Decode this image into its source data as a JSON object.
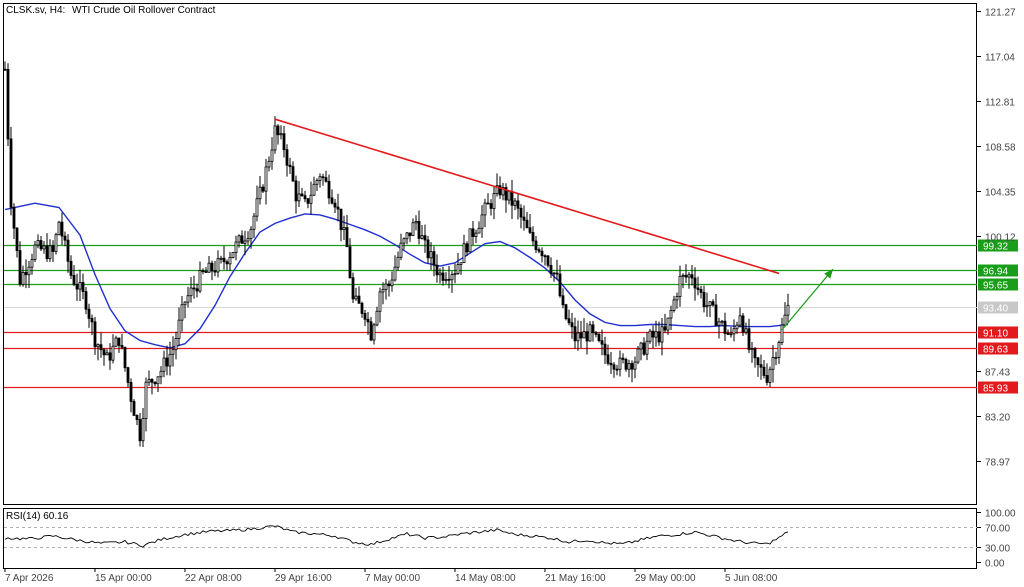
{
  "header": {
    "symbol_label": "CLSK.sv, H4:",
    "instrument_label": "WTI Crude Oil Rollover Contract"
  },
  "rsi_panel": {
    "label": "RSI(14) 60.16"
  },
  "colors": {
    "candle": "#000000",
    "moving_average": "#1f2fd0",
    "support_line": "#e31a1c",
    "resistance_line": "#1a9e1a",
    "trendline": "#e31a1c",
    "forecast_arrow": "#1a9e1a",
    "current_price_tag": "#c8c8c8",
    "rsi_line": "#000000"
  },
  "chart_data": [
    {
      "type": "candlestick",
      "ylim": [
        76.5,
        123
      ],
      "y_ticks": [
        "121.27",
        "117.04",
        "112.81",
        "108.58",
        "104.35",
        "100.12",
        "87.43",
        "83.20",
        "78.97"
      ],
      "x_ticks": [
        {
          "label": "7 Apr 2026",
          "bar": 0
        },
        {
          "label": "15 Apr 00:00",
          "bar": 30
        },
        {
          "label": "22 Apr 08:00",
          "bar": 60
        },
        {
          "label": "29 Apr 16:00",
          "bar": 90
        },
        {
          "label": "7 May 00:00",
          "bar": 120
        },
        {
          "label": "14 May 08:00",
          "bar": 150
        },
        {
          "label": "21 May 16:00",
          "bar": 180
        },
        {
          "label": "29 May 00:00",
          "bar": 210
        },
        {
          "label": "5 Jun 08:00",
          "bar": 240
        }
      ],
      "bar_count": 262,
      "price_path": [
        [
          0,
          115.8
        ],
        [
          2,
          103.5
        ],
        [
          5,
          96.0
        ],
        [
          10,
          99.0
        ],
        [
          16,
          98.5
        ],
        [
          18,
          101.5
        ],
        [
          22,
          96.5
        ],
        [
          27,
          94.0
        ],
        [
          30,
          90.5
        ],
        [
          34,
          88.5
        ],
        [
          38,
          90.5
        ],
        [
          42,
          85.0
        ],
        [
          45,
          81.5
        ],
        [
          47,
          86.0
        ],
        [
          52,
          87.5
        ],
        [
          56,
          89.5
        ],
        [
          60,
          94.0
        ],
        [
          66,
          96.5
        ],
        [
          72,
          97.5
        ],
        [
          78,
          99.5
        ],
        [
          82,
          101.0
        ],
        [
          86,
          105.0
        ],
        [
          90,
          110.0
        ],
        [
          93,
          108.5
        ],
        [
          97,
          104.0
        ],
        [
          100,
          103.0
        ],
        [
          105,
          106.0
        ],
        [
          110,
          103.5
        ],
        [
          114,
          99.0
        ],
        [
          116,
          94.0
        ],
        [
          120,
          93.0
        ],
        [
          122,
          91.0
        ],
        [
          125,
          95.0
        ],
        [
          128,
          95.5
        ],
        [
          132,
          99.0
        ],
        [
          137,
          101.5
        ],
        [
          140,
          99.0
        ],
        [
          145,
          96.5
        ],
        [
          150,
          97.0
        ],
        [
          155,
          100.0
        ],
        [
          160,
          102.5
        ],
        [
          165,
          104.5
        ],
        [
          170,
          103.0
        ],
        [
          175,
          100.0
        ],
        [
          180,
          98.5
        ],
        [
          184,
          96.0
        ],
        [
          186,
          93.0
        ],
        [
          190,
          90.5
        ],
        [
          195,
          91.0
        ],
        [
          200,
          89.0
        ],
        [
          205,
          88.0
        ],
        [
          210,
          88.5
        ],
        [
          215,
          90.5
        ],
        [
          220,
          91.0
        ],
        [
          225,
          96.0
        ],
        [
          229,
          96.5
        ],
        [
          233,
          94.0
        ],
        [
          237,
          92.5
        ],
        [
          242,
          90.5
        ],
        [
          245,
          93.0
        ],
        [
          248,
          89.5
        ],
        [
          250,
          88.0
        ],
        [
          254,
          87.0
        ],
        [
          257,
          89.5
        ],
        [
          259,
          91.5
        ],
        [
          261,
          93.4
        ]
      ],
      "moving_average": [
        [
          0,
          102.6
        ],
        [
          10,
          103.2
        ],
        [
          18,
          102.8
        ],
        [
          25,
          100.2
        ],
        [
          30,
          96.5
        ],
        [
          35,
          93.3
        ],
        [
          40,
          91.2
        ],
        [
          45,
          90.3
        ],
        [
          50,
          89.9
        ],
        [
          55,
          89.6
        ],
        [
          60,
          90.0
        ],
        [
          65,
          91.4
        ],
        [
          70,
          93.6
        ],
        [
          75,
          96.3
        ],
        [
          80,
          98.5
        ],
        [
          85,
          100.5
        ],
        [
          90,
          101.3
        ],
        [
          95,
          101.8
        ],
        [
          100,
          102.2
        ],
        [
          105,
          102.1
        ],
        [
          110,
          101.7
        ],
        [
          115,
          101.2
        ],
        [
          120,
          100.7
        ],
        [
          125,
          100.1
        ],
        [
          130,
          99.3
        ],
        [
          135,
          98.4
        ],
        [
          140,
          97.6
        ],
        [
          145,
          97.3
        ],
        [
          150,
          97.6
        ],
        [
          155,
          98.5
        ],
        [
          160,
          99.4
        ],
        [
          165,
          99.6
        ],
        [
          170,
          99.0
        ],
        [
          175,
          98.1
        ],
        [
          180,
          97.1
        ],
        [
          185,
          95.8
        ],
        [
          190,
          94.1
        ],
        [
          195,
          92.8
        ],
        [
          200,
          92.0
        ],
        [
          205,
          91.7
        ],
        [
          210,
          91.7
        ],
        [
          215,
          91.8
        ],
        [
          220,
          91.8
        ],
        [
          225,
          91.7
        ],
        [
          230,
          91.6
        ],
        [
          235,
          91.6
        ],
        [
          240,
          91.7
        ],
        [
          245,
          91.6
        ],
        [
          250,
          91.6
        ],
        [
          255,
          91.6
        ],
        [
          261,
          91.8
        ]
      ],
      "horizontal_levels": [
        {
          "label": "99.32",
          "value": 99.32,
          "kind": "resistance"
        },
        {
          "label": "96.94",
          "value": 96.94,
          "kind": "resistance"
        },
        {
          "label": "95.65",
          "value": 95.65,
          "kind": "resistance"
        },
        {
          "label": "91.10",
          "value": 91.1,
          "kind": "support"
        },
        {
          "label": "89.63",
          "value": 89.63,
          "kind": "support"
        },
        {
          "label": "85.93",
          "value": 85.93,
          "kind": "support"
        }
      ],
      "current_price": {
        "label": "93.40",
        "value": 93.4
      },
      "trendline": {
        "from": [
          90,
          111.1
        ],
        "to": [
          258,
          96.6
        ]
      },
      "forecast_arrow": {
        "from": [
          259,
          91.3
        ],
        "to": [
          276,
          97.0
        ]
      }
    },
    {
      "type": "line",
      "name": "RSI(14)",
      "ylim": [
        0,
        100
      ],
      "y_ticks": [
        "100.00",
        "70.00",
        "30.00",
        "0.00"
      ],
      "reference_levels": [
        70,
        30
      ],
      "last_value": 60.16,
      "rsi_path": [
        [
          0,
          48
        ],
        [
          8,
          46
        ],
        [
          16,
          52
        ],
        [
          24,
          44
        ],
        [
          32,
          37
        ],
        [
          40,
          40
        ],
        [
          46,
          33
        ],
        [
          52,
          45
        ],
        [
          60,
          55
        ],
        [
          68,
          61
        ],
        [
          76,
          63
        ],
        [
          82,
          66
        ],
        [
          90,
          72
        ],
        [
          96,
          60
        ],
        [
          104,
          56
        ],
        [
          110,
          52
        ],
        [
          116,
          40
        ],
        [
          122,
          35
        ],
        [
          128,
          46
        ],
        [
          134,
          56
        ],
        [
          140,
          48
        ],
        [
          146,
          50
        ],
        [
          152,
          56
        ],
        [
          158,
          60
        ],
        [
          164,
          64
        ],
        [
          170,
          55
        ],
        [
          176,
          52
        ],
        [
          182,
          48
        ],
        [
          188,
          40
        ],
        [
          194,
          44
        ],
        [
          200,
          38
        ],
        [
          206,
          36
        ],
        [
          212,
          44
        ],
        [
          218,
          52
        ],
        [
          224,
          55
        ],
        [
          230,
          60
        ],
        [
          236,
          52
        ],
        [
          242,
          44
        ],
        [
          248,
          38
        ],
        [
          254,
          36
        ],
        [
          258,
          48
        ],
        [
          261,
          60.16
        ]
      ]
    }
  ]
}
